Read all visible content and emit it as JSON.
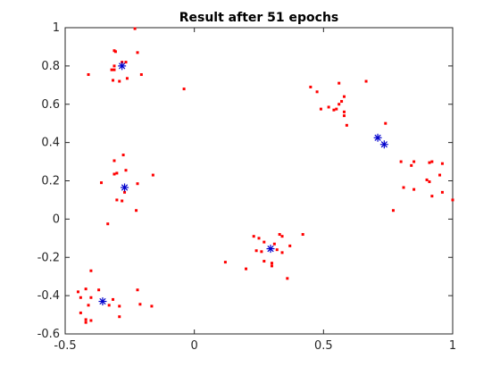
{
  "chart_data": {
    "type": "scatter",
    "title": "Result after 51 epochs",
    "xlabel": "",
    "ylabel": "",
    "xlim": [
      -0.5,
      1.0
    ],
    "ylim": [
      -0.6,
      1.0
    ],
    "xticks": [
      "-0.5",
      "0",
      "0.5",
      "1"
    ],
    "yticks": [
      "-0.6",
      "-0.4",
      "-0.2",
      "0",
      "0.2",
      "0.4",
      "0.6",
      "0.8",
      "1"
    ],
    "grid": false,
    "colors": {
      "data": "#ff0000",
      "centers": "#0000cc",
      "axes": "#262626"
    },
    "series": [
      {
        "marker": "dot",
        "color": "#ff0000",
        "points": [
          [
            -0.23,
            0.995
          ],
          [
            -0.41,
            0.755
          ],
          [
            -0.31,
            0.88
          ],
          [
            -0.305,
            0.875
          ],
          [
            -0.22,
            0.87
          ],
          [
            -0.28,
            0.82
          ],
          [
            -0.265,
            0.82
          ],
          [
            -0.31,
            0.8
          ],
          [
            -0.31,
            0.78
          ],
          [
            -0.32,
            0.78
          ],
          [
            -0.205,
            0.755
          ],
          [
            -0.26,
            0.735
          ],
          [
            -0.315,
            0.725
          ],
          [
            -0.29,
            0.72
          ],
          [
            -0.04,
            0.68
          ],
          [
            -0.275,
            0.335
          ],
          [
            -0.31,
            0.305
          ],
          [
            -0.265,
            0.255
          ],
          [
            -0.3,
            0.24
          ],
          [
            -0.31,
            0.235
          ],
          [
            -0.16,
            0.23
          ],
          [
            -0.36,
            0.19
          ],
          [
            -0.22,
            0.185
          ],
          [
            -0.27,
            0.14
          ],
          [
            -0.3,
            0.1
          ],
          [
            -0.28,
            0.095
          ],
          [
            -0.225,
            0.045
          ],
          [
            -0.335,
            -0.025
          ],
          [
            -0.4,
            -0.27
          ],
          [
            -0.42,
            -0.365
          ],
          [
            -0.37,
            -0.37
          ],
          [
            -0.22,
            -0.37
          ],
          [
            -0.45,
            -0.38
          ],
          [
            -0.44,
            -0.41
          ],
          [
            -0.4,
            -0.41
          ],
          [
            -0.315,
            -0.42
          ],
          [
            -0.41,
            -0.45
          ],
          [
            -0.33,
            -0.45
          ],
          [
            -0.29,
            -0.455
          ],
          [
            -0.165,
            -0.455
          ],
          [
            -0.21,
            -0.445
          ],
          [
            -0.44,
            -0.49
          ],
          [
            -0.42,
            -0.525
          ],
          [
            -0.42,
            -0.54
          ],
          [
            -0.4,
            -0.53
          ],
          [
            -0.29,
            -0.51
          ],
          [
            0.45,
            0.69
          ],
          [
            0.56,
            0.71
          ],
          [
            0.665,
            0.72
          ],
          [
            0.475,
            0.665
          ],
          [
            0.52,
            0.585
          ],
          [
            0.49,
            0.575
          ],
          [
            0.54,
            0.57
          ],
          [
            0.55,
            0.575
          ],
          [
            0.58,
            0.64
          ],
          [
            0.56,
            0.6
          ],
          [
            0.57,
            0.615
          ],
          [
            0.58,
            0.56
          ],
          [
            0.58,
            0.54
          ],
          [
            0.59,
            0.49
          ],
          [
            0.74,
            0.5
          ],
          [
            0.8,
            0.3
          ],
          [
            0.84,
            0.28
          ],
          [
            0.85,
            0.3
          ],
          [
            0.91,
            0.295
          ],
          [
            0.92,
            0.3
          ],
          [
            0.96,
            0.29
          ],
          [
            0.9,
            0.205
          ],
          [
            0.95,
            0.23
          ],
          [
            0.81,
            0.165
          ],
          [
            0.85,
            0.155
          ],
          [
            0.91,
            0.195
          ],
          [
            0.92,
            0.12
          ],
          [
            0.96,
            0.14
          ],
          [
            1.0,
            0.1
          ],
          [
            0.77,
            0.045
          ],
          [
            0.23,
            -0.09
          ],
          [
            0.25,
            -0.1
          ],
          [
            0.33,
            -0.08
          ],
          [
            0.34,
            -0.09
          ],
          [
            0.42,
            -0.08
          ],
          [
            0.27,
            -0.12
          ],
          [
            0.31,
            -0.13
          ],
          [
            0.32,
            -0.16
          ],
          [
            0.37,
            -0.14
          ],
          [
            0.24,
            -0.165
          ],
          [
            0.26,
            -0.17
          ],
          [
            0.34,
            -0.175
          ],
          [
            0.12,
            -0.225
          ],
          [
            0.2,
            -0.26
          ],
          [
            0.27,
            -0.22
          ],
          [
            0.3,
            -0.23
          ],
          [
            0.3,
            -0.245
          ],
          [
            0.36,
            -0.31
          ]
        ]
      },
      {
        "marker": "asterisk",
        "color": "#0000cc",
        "points": [
          [
            -0.28,
            0.8
          ],
          [
            -0.27,
            0.165
          ],
          [
            -0.355,
            -0.43
          ],
          [
            0.295,
            -0.155
          ],
          [
            0.71,
            0.425
          ],
          [
            0.735,
            0.39
          ]
        ]
      }
    ]
  }
}
